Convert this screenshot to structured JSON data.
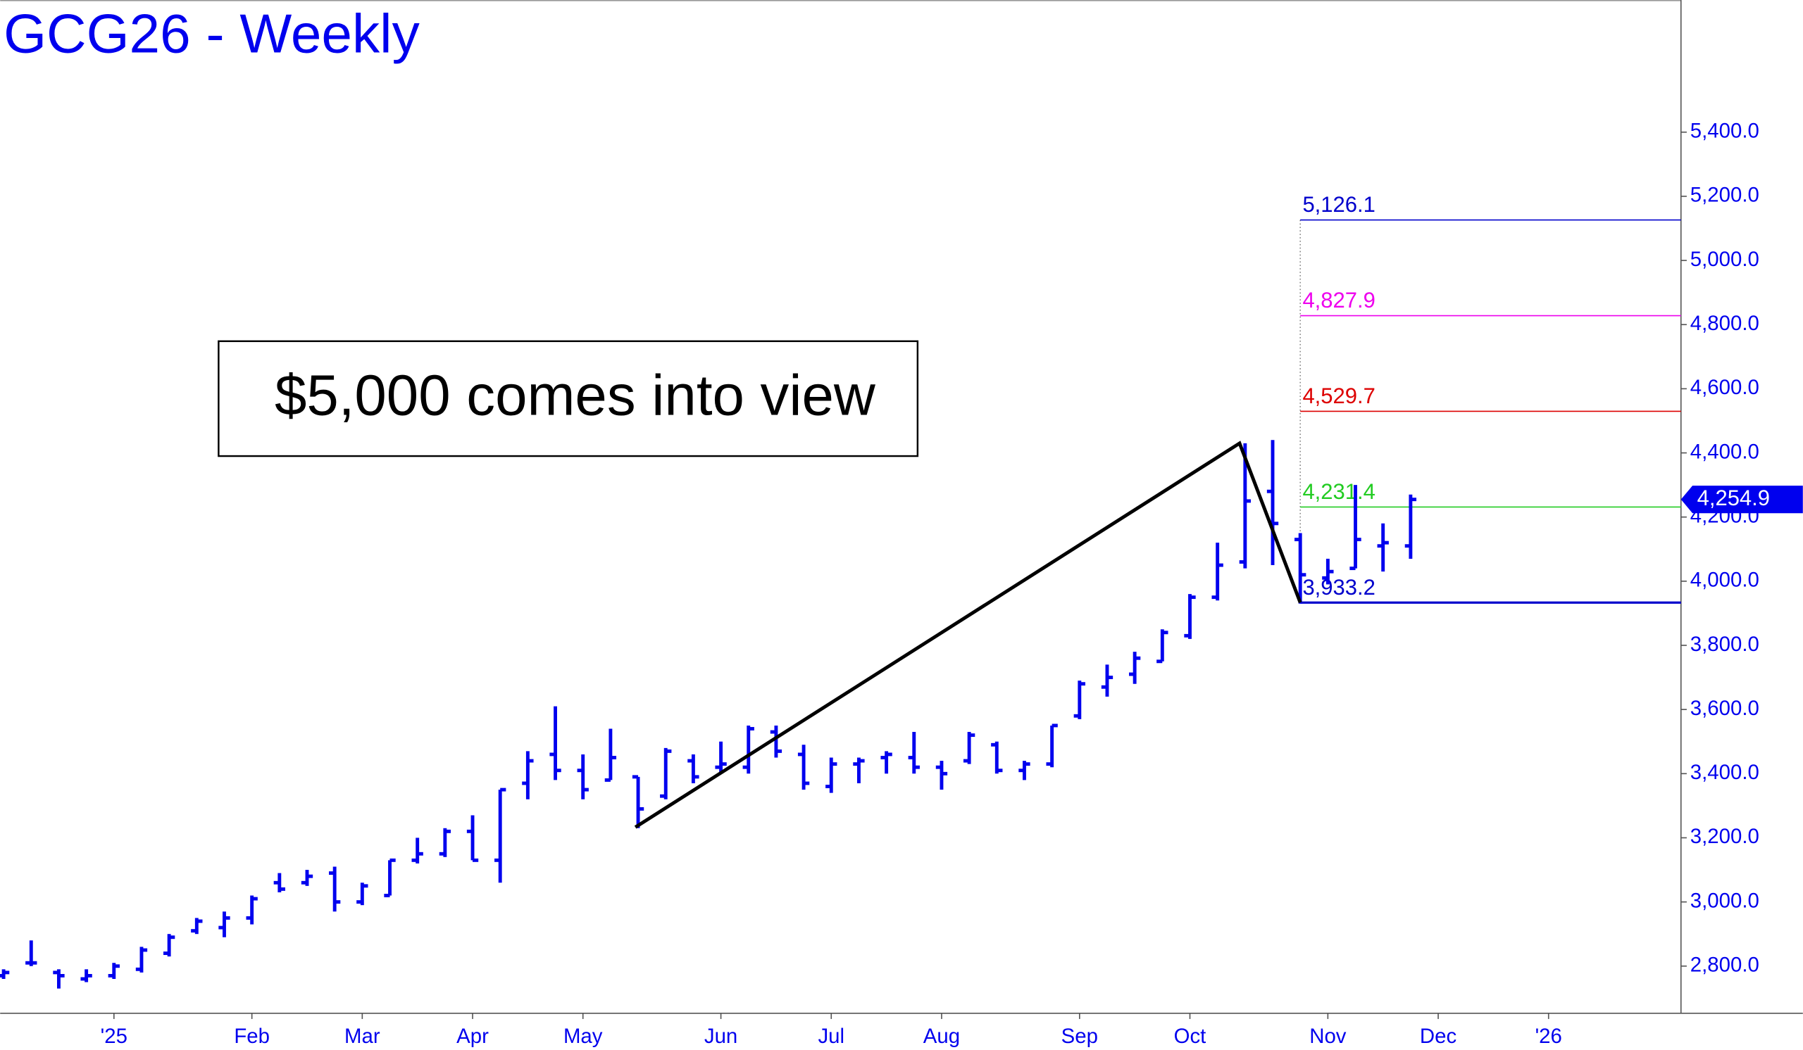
{
  "chart_data": {
    "type": "ohlc",
    "title": "GCG26 - Weekly",
    "annotation": "$5,000 comes into view",
    "color": "#0000ee",
    "x": [
      0,
      1,
      2,
      3,
      4,
      5,
      6,
      7,
      8,
      9,
      10,
      11,
      12,
      13,
      14,
      15,
      16,
      17,
      18,
      19,
      20,
      21,
      22,
      23,
      24,
      25,
      26,
      27,
      28,
      29,
      30,
      31,
      32,
      33,
      34,
      35,
      36,
      37,
      38,
      39,
      40,
      41,
      42,
      43,
      44,
      45,
      46,
      47,
      48,
      49,
      50,
      51
    ],
    "open": [
      2770,
      2810,
      2780,
      2760,
      2770,
      2790,
      2840,
      2910,
      2920,
      2950,
      3060,
      3060,
      3090,
      3000,
      3020,
      3130,
      3150,
      3220,
      3130,
      3370,
      3460,
      3410,
      3380,
      3390,
      3330,
      3440,
      3420,
      3420,
      3530,
      3460,
      3360,
      3430,
      3450,
      3450,
      3420,
      3440,
      3490,
      3410,
      3430,
      3580,
      3670,
      3710,
      3750,
      3830,
      3950,
      4060,
      4280,
      4130,
      4010,
      4040,
      4110,
      4110
    ],
    "high": [
      2790,
      2880,
      2790,
      2790,
      2810,
      2860,
      2900,
      2950,
      2970,
      3020,
      3090,
      3100,
      3110,
      3060,
      3130,
      3200,
      3230,
      3270,
      3350,
      3470,
      3610,
      3460,
      3540,
      3390,
      3480,
      3460,
      3500,
      3550,
      3550,
      3490,
      3450,
      3450,
      3470,
      3530,
      3440,
      3530,
      3500,
      3440,
      3550,
      3690,
      3740,
      3780,
      3850,
      3960,
      4120,
      4430,
      4440,
      4150,
      4070,
      4300,
      4180,
      4270
    ],
    "low": [
      2760,
      2800,
      2730,
      2750,
      2760,
      2780,
      2830,
      2900,
      2890,
      2930,
      3030,
      3050,
      2970,
      2990,
      3020,
      3120,
      3140,
      3130,
      3060,
      3320,
      3380,
      3320,
      3380,
      3230,
      3320,
      3370,
      3400,
      3400,
      3450,
      3350,
      3340,
      3370,
      3400,
      3400,
      3350,
      3430,
      3400,
      3380,
      3420,
      3570,
      3640,
      3680,
      3750,
      3820,
      3940,
      4040,
      4050,
      3930,
      3990,
      4040,
      4030,
      4070
    ],
    "close": [
      2780,
      2810,
      2770,
      2770,
      2800,
      2850,
      2890,
      2940,
      2950,
      3010,
      3040,
      3080,
      3000,
      3050,
      3130,
      3150,
      3220,
      3130,
      3350,
      3440,
      3410,
      3350,
      3450,
      3290,
      3470,
      3390,
      3430,
      3540,
      3470,
      3370,
      3430,
      3440,
      3460,
      3420,
      3400,
      3520,
      3410,
      3430,
      3550,
      3680,
      3700,
      3760,
      3840,
      3950,
      4050,
      4250,
      4180,
      4020,
      4030,
      4130,
      4120,
      4254.9
    ],
    "last_price": {
      "value": 4254.9,
      "label": "4,254.9"
    },
    "swing_line": {
      "x": [
        22.9,
        44.8,
        47
      ],
      "values": [
        3233,
        4430,
        3933.2
      ],
      "color": "#000000"
    },
    "levels": [
      {
        "value": 5126.1,
        "label": "5,126.1",
        "color": "#0000cc"
      },
      {
        "value": 4827.9,
        "label": "4,827.9",
        "color": "#ee00ee"
      },
      {
        "value": 4529.7,
        "label": "4,529.7",
        "color": "#dd0000"
      },
      {
        "value": 4231.4,
        "label": "4,231.4",
        "color": "#22cc22"
      },
      {
        "value": 3933.2,
        "label": "3,933.2",
        "color": "#0000cc"
      }
    ],
    "xlim": [
      -0.125,
      60.8
    ],
    "xticks": [
      {
        "value": 4,
        "label": "'25"
      },
      {
        "value": 9,
        "label": "Feb"
      },
      {
        "value": 13,
        "label": "Mar"
      },
      {
        "value": 17,
        "label": "Apr"
      },
      {
        "value": 21,
        "label": "May"
      },
      {
        "value": 26,
        "label": "Jun"
      },
      {
        "value": 30,
        "label": "Jul"
      },
      {
        "value": 34,
        "label": "Aug"
      },
      {
        "value": 39,
        "label": "Sep"
      },
      {
        "value": 43,
        "label": "Oct"
      },
      {
        "value": 48,
        "label": "Nov"
      },
      {
        "value": 52,
        "label": "Dec"
      },
      {
        "value": 56,
        "label": "'26"
      }
    ],
    "ylim": [
      2653,
      5812
    ],
    "yticks": [
      {
        "value": 2800,
        "label": "2,800.0"
      },
      {
        "value": 3000,
        "label": "3,000.0"
      },
      {
        "value": 3200,
        "label": "3,200.0"
      },
      {
        "value": 3400,
        "label": "3,400.0"
      },
      {
        "value": 3600,
        "label": "3,600.0"
      },
      {
        "value": 3800,
        "label": "3,800.0"
      },
      {
        "value": 4000,
        "label": "4,000.0"
      },
      {
        "value": 4200,
        "label": "4,200.0"
      },
      {
        "value": 4400,
        "label": "4,400.0"
      },
      {
        "value": 4600,
        "label": "4,600.0"
      },
      {
        "value": 4800,
        "label": "4,800.0"
      },
      {
        "value": 5000,
        "label": "5,000.0"
      },
      {
        "value": 5200,
        "label": "5,200.0"
      },
      {
        "value": 5400,
        "label": "5,400.0"
      }
    ]
  }
}
